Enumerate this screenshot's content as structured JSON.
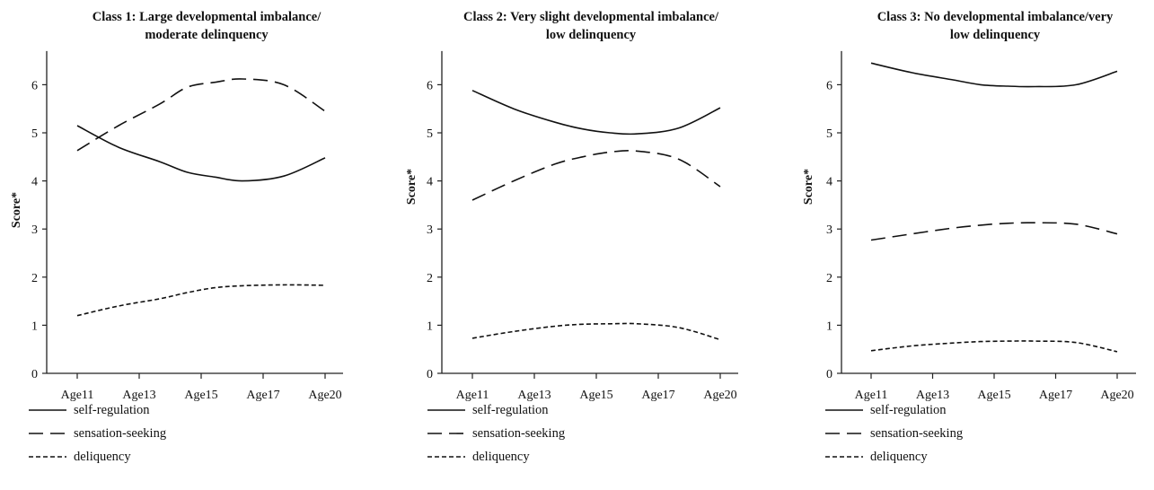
{
  "chart_data": [
    {
      "type": "line",
      "title": "Class 1: Large developmental imbalance/\nmoderate delinquency",
      "ylabel": "Score*",
      "xlabel": "",
      "categories": [
        "Age11",
        "Age13",
        "Age15",
        "Age17",
        "Age20"
      ],
      "x": [
        11,
        12.5,
        14,
        15,
        16,
        17,
        18.5,
        20
      ],
      "ylim": [
        0,
        6.7
      ],
      "yticks": [
        0,
        1,
        2,
        3,
        4,
        5,
        6
      ],
      "series": [
        {
          "name": "self-regulation",
          "style": "solid",
          "values": [
            5.15,
            4.7,
            4.4,
            4.18,
            4.08,
            4.0,
            4.1,
            4.48
          ]
        },
        {
          "name": "sensation-seeking",
          "style": "long-dash",
          "values": [
            4.63,
            5.15,
            5.6,
            5.95,
            6.05,
            6.12,
            6.0,
            5.45
          ]
        },
        {
          "name": "deliquency",
          "style": "short-dash",
          "values": [
            1.2,
            1.4,
            1.55,
            1.68,
            1.78,
            1.82,
            1.84,
            1.83
          ]
        }
      ],
      "legend_position": "bottom-left"
    },
    {
      "type": "line",
      "title": "Class 2: Very slight developmental imbalance/\nlow delinquency",
      "ylabel": "Score*",
      "xlabel": "",
      "categories": [
        "Age11",
        "Age13",
        "Age15",
        "Age17",
        "Age20"
      ],
      "x": [
        11,
        12.5,
        14,
        15,
        16,
        17,
        18.5,
        20
      ],
      "ylim": [
        0,
        6.7
      ],
      "yticks": [
        0,
        1,
        2,
        3,
        4,
        5,
        6
      ],
      "series": [
        {
          "name": "self-regulation",
          "style": "solid",
          "values": [
            5.88,
            5.5,
            5.22,
            5.08,
            5.0,
            4.98,
            5.1,
            5.52
          ]
        },
        {
          "name": "sensation-seeking",
          "style": "long-dash",
          "values": [
            3.6,
            4.0,
            4.35,
            4.5,
            4.6,
            4.62,
            4.45,
            3.88
          ]
        },
        {
          "name": "deliquency",
          "style": "short-dash",
          "values": [
            0.73,
            0.87,
            0.98,
            1.02,
            1.03,
            1.03,
            0.95,
            0.7
          ]
        }
      ],
      "legend_position": "bottom-left"
    },
    {
      "type": "line",
      "title": "Class 3: No developmental imbalance/very\nlow delinquency",
      "ylabel": "Score*",
      "xlabel": "",
      "categories": [
        "Age11",
        "Age13",
        "Age15",
        "Age17",
        "Age20"
      ],
      "x": [
        11,
        12.5,
        14,
        15,
        16,
        17,
        18.5,
        20
      ],
      "ylim": [
        0,
        6.7
      ],
      "yticks": [
        0,
        1,
        2,
        3,
        4,
        5,
        6
      ],
      "series": [
        {
          "name": "self-regulation",
          "style": "solid",
          "values": [
            6.45,
            6.25,
            6.1,
            6.0,
            5.97,
            5.96,
            6.0,
            6.28
          ]
        },
        {
          "name": "sensation-seeking",
          "style": "long-dash",
          "values": [
            2.77,
            2.9,
            3.02,
            3.08,
            3.12,
            3.13,
            3.1,
            2.9
          ]
        },
        {
          "name": "deliquency",
          "style": "short-dash",
          "values": [
            0.47,
            0.57,
            0.63,
            0.66,
            0.67,
            0.67,
            0.64,
            0.45
          ]
        }
      ],
      "legend_position": "bottom-left"
    }
  ]
}
